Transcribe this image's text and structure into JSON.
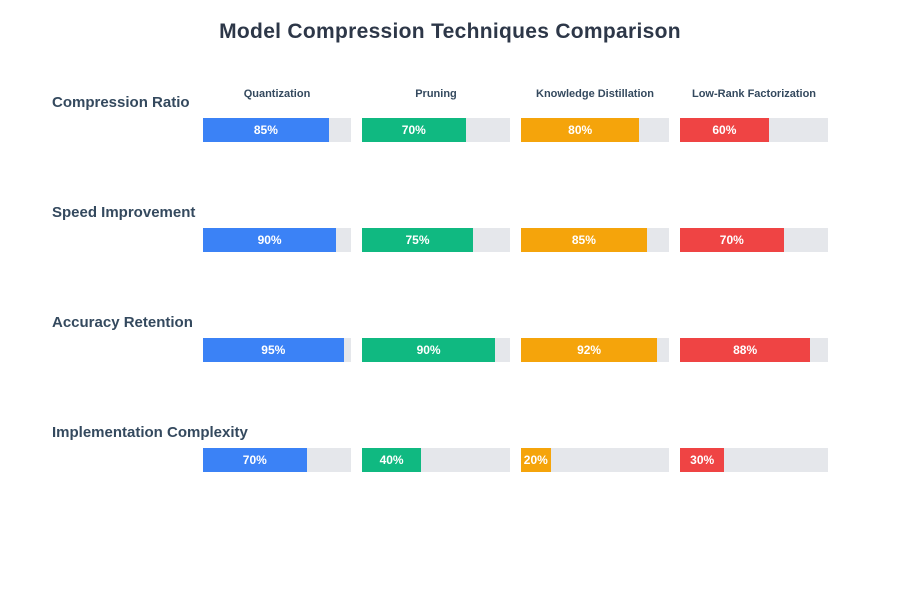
{
  "title": "Model Compression Techniques Comparison",
  "chart_data": {
    "type": "bar",
    "title": "Model Compression Techniques Comparison",
    "layout": "horizontal-progress-bars-grouped-by-metric",
    "unit": "%",
    "value_range": [
      0,
      100
    ],
    "value_labels": "inside-bar-white-bold",
    "track_color": "#e5e7eb",
    "categories": [
      "Compression Ratio",
      "Speed Improvement",
      "Accuracy Retention",
      "Implementation Complexity"
    ],
    "series": [
      {
        "name": "Quantization",
        "color": "#3b82f6",
        "values": [
          85,
          90,
          95,
          70
        ]
      },
      {
        "name": "Pruning",
        "color": "#10b981",
        "values": [
          70,
          75,
          90,
          40
        ]
      },
      {
        "name": "Knowledge Distillation",
        "color": "#f5a40b",
        "values": [
          80,
          85,
          92,
          20
        ]
      },
      {
        "name": "Low-Rank Factorization",
        "color": "#ef4444",
        "values": [
          60,
          70,
          88,
          30
        ]
      }
    ],
    "cell_values_by_metric": {
      "Compression Ratio": [
        85,
        70,
        80,
        60
      ],
      "Speed Improvement": [
        90,
        75,
        85,
        70
      ],
      "Accuracy Retention": [
        95,
        90,
        92,
        88
      ],
      "Implementation Complexity": [
        70,
        40,
        20,
        30
      ]
    },
    "text_colors": {
      "title": "#2d3748",
      "labels": "#34495e"
    },
    "legend_position": "column-headers-top",
    "grid": false
  }
}
